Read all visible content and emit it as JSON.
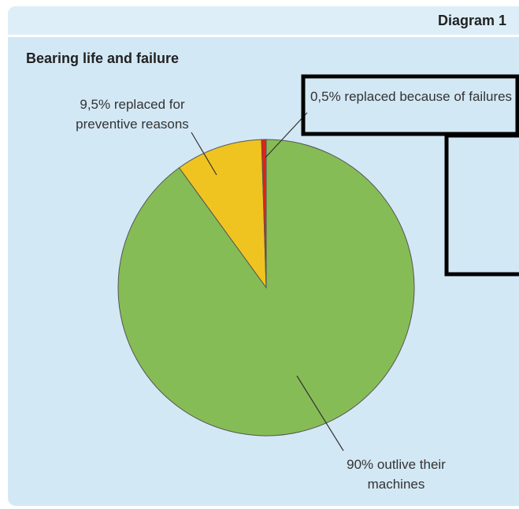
{
  "header": {
    "title": "Diagram 1"
  },
  "chart_data": {
    "type": "pie",
    "title": "Bearing life and failure",
    "categories": [
      "outlive their machines",
      "replaced for preventive reasons",
      "replaced because of failures"
    ],
    "values": [
      90,
      9.5,
      0.5
    ],
    "value_labels": [
      "90%",
      "9,5%",
      "0,5%"
    ],
    "colors": [
      "#86bc56",
      "#f0c420",
      "#e2231a"
    ]
  }
}
